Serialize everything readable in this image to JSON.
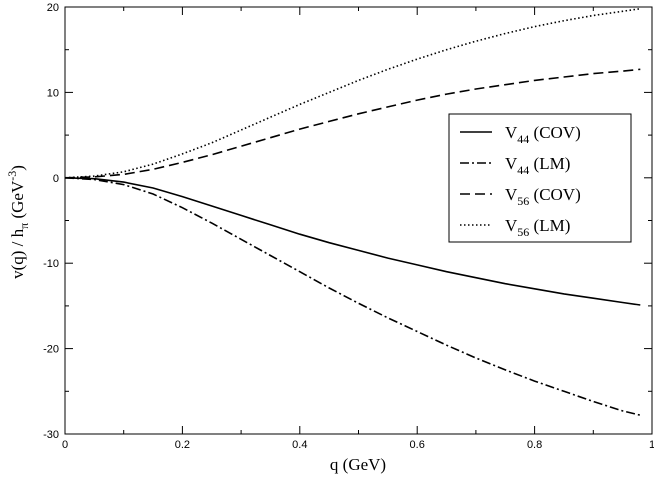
{
  "chart_data": {
    "type": "line",
    "title": "",
    "xlabel": "q (GeV)",
    "ylabel": {
      "main": "v(q) / h",
      "sub": "π",
      "unit_open": " (GeV",
      "unit_sup": "-3",
      "unit_close": ")"
    },
    "xlim": [
      0,
      1
    ],
    "ylim": [
      -30,
      20
    ],
    "x_ticks": [
      {
        "value": 0,
        "label": "0"
      },
      {
        "value": 0.2,
        "label": "0.2"
      },
      {
        "value": 0.4,
        "label": "0.4"
      },
      {
        "value": 0.6,
        "label": "0.6"
      },
      {
        "value": 0.8,
        "label": "0.8"
      },
      {
        "value": 1,
        "label": "1"
      }
    ],
    "y_ticks": [
      {
        "value": -30,
        "label": "-30"
      },
      {
        "value": -20,
        "label": "-20"
      },
      {
        "value": -10,
        "label": "-10"
      },
      {
        "value": 0,
        "label": "0"
      },
      {
        "value": 10,
        "label": "10"
      },
      {
        "value": 20,
        "label": "20"
      }
    ],
    "grid": false,
    "legend_position": "right",
    "x": [
      0,
      0.05,
      0.1,
      0.15,
      0.2,
      0.25,
      0.3,
      0.35,
      0.4,
      0.45,
      0.5,
      0.55,
      0.6,
      0.65,
      0.7,
      0.75,
      0.8,
      0.85,
      0.9,
      0.95,
      0.98
    ],
    "series": [
      {
        "name": "V",
        "sub": "44",
        "suffix": " (COV)",
        "dash": "solid",
        "values": [
          0,
          -0.1,
          -0.5,
          -1.2,
          -2.2,
          -3.3,
          -4.4,
          -5.5,
          -6.6,
          -7.6,
          -8.5,
          -9.4,
          -10.2,
          -11.0,
          -11.7,
          -12.4,
          -13.0,
          -13.6,
          -14.1,
          -14.6,
          -14.9
        ]
      },
      {
        "name": "V",
        "sub": "44",
        "suffix": " (LM)",
        "dash": "dashdot",
        "values": [
          0,
          -0.2,
          -0.8,
          -1.9,
          -3.5,
          -5.3,
          -7.2,
          -9.1,
          -11.0,
          -12.9,
          -14.7,
          -16.4,
          -18.0,
          -19.6,
          -21.1,
          -22.5,
          -23.8,
          -25.0,
          -26.2,
          -27.3,
          -27.8
        ]
      },
      {
        "name": "V",
        "sub": "56",
        "suffix": " (COV)",
        "dash": "dashed",
        "values": [
          0,
          0.1,
          0.4,
          1.0,
          1.8,
          2.7,
          3.7,
          4.7,
          5.7,
          6.6,
          7.5,
          8.3,
          9.1,
          9.8,
          10.4,
          10.9,
          11.4,
          11.8,
          12.2,
          12.5,
          12.7
        ]
      },
      {
        "name": "V",
        "sub": "56",
        "suffix": " (LM)",
        "dash": "dotted",
        "values": [
          0,
          0.2,
          0.7,
          1.6,
          2.8,
          4.1,
          5.6,
          7.1,
          8.6,
          10.0,
          11.4,
          12.7,
          13.9,
          15.0,
          16.0,
          16.9,
          17.7,
          18.4,
          19.0,
          19.5,
          19.8
        ]
      }
    ]
  }
}
